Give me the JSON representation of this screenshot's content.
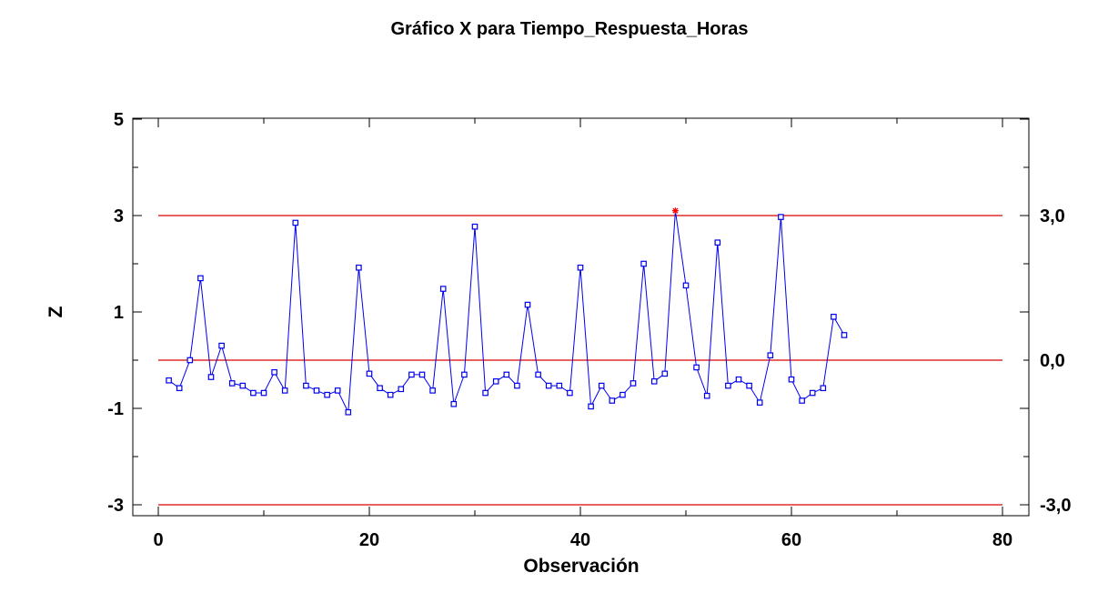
{
  "chart_data": {
    "type": "line",
    "title": "Gráfico X para Tiempo_Respuesta_Horas",
    "xlabel": "Observación",
    "ylabel": "Z",
    "xlim": [
      0,
      80
    ],
    "ylim": [
      -3.3,
      5
    ],
    "x_ticks": [
      "0",
      "20",
      "40",
      "60",
      "80"
    ],
    "y_ticks": [
      "5",
      "3",
      "1",
      "-1",
      "-3"
    ],
    "control_limits": {
      "ucl": 3.0,
      "center": 0.0,
      "lcl": -3.0,
      "labels": [
        "3,0",
        "0,0",
        "-3,0"
      ]
    },
    "x": [
      1,
      2,
      3,
      4,
      5,
      6,
      7,
      8,
      9,
      10,
      11,
      12,
      13,
      14,
      15,
      16,
      17,
      18,
      19,
      20,
      21,
      22,
      23,
      24,
      25,
      26,
      27,
      28,
      29,
      30,
      31,
      32,
      33,
      34,
      35,
      36,
      37,
      38,
      39,
      40,
      41,
      42,
      43,
      44,
      45,
      46,
      47,
      48,
      49,
      50,
      51,
      52,
      53,
      54,
      55,
      56,
      57,
      58,
      59,
      60,
      61,
      62,
      63,
      64,
      65
    ],
    "values": [
      -0.42,
      -0.58,
      0.0,
      1.7,
      -0.35,
      0.3,
      -0.48,
      -0.53,
      -0.68,
      -0.68,
      -0.25,
      -0.63,
      2.85,
      -0.53,
      -0.63,
      -0.72,
      -0.63,
      -1.08,
      1.92,
      -0.28,
      -0.58,
      -0.72,
      -0.6,
      -0.3,
      -0.3,
      -0.63,
      1.48,
      -0.91,
      -0.3,
      2.77,
      -0.68,
      -0.44,
      -0.3,
      -0.53,
      1.15,
      -0.3,
      -0.53,
      -0.53,
      -0.68,
      1.92,
      -0.96,
      -0.53,
      -0.84,
      -0.72,
      -0.48,
      2.0,
      -0.44,
      -0.28,
      3.1,
      1.55,
      -0.15,
      -0.74,
      2.44,
      -0.53,
      -0.4,
      -0.53,
      -0.88,
      0.1,
      2.97,
      -0.4,
      -0.84,
      -0.68,
      -0.58,
      0.9,
      0.52
    ],
    "out_of_control_index": 48,
    "colors": {
      "series": "#0000ee",
      "limits": "#dd0000",
      "out_of_control": "#ff0000"
    },
    "grid": false
  }
}
